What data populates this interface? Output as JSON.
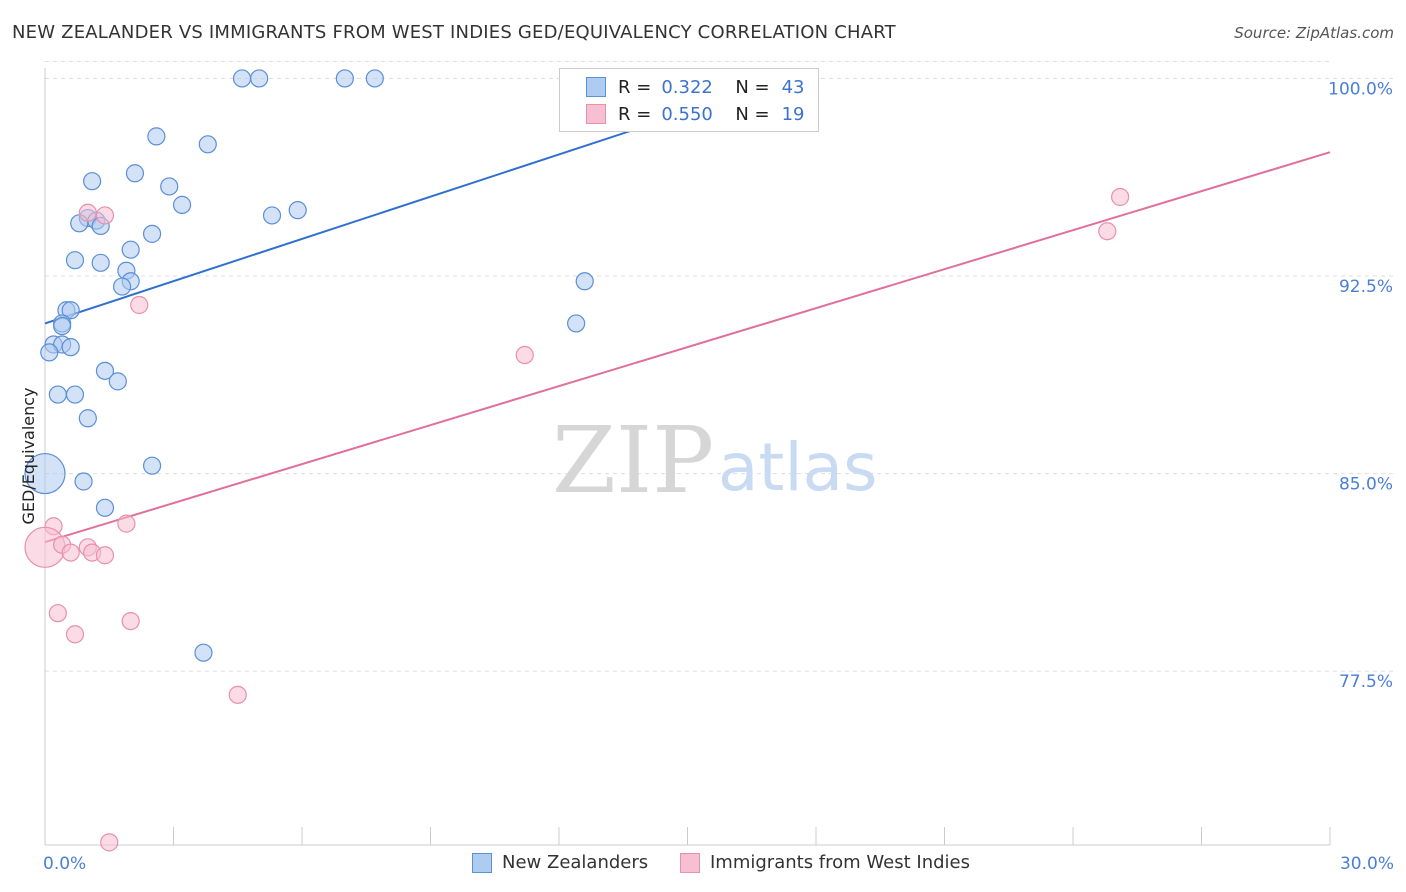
{
  "title": "NEW ZEALANDER VS IMMIGRANTS FROM WEST INDIES GED/EQUIVALENCY CORRELATION CHART",
  "source": "Source: ZipAtlas.com",
  "watermark": {
    "zip": "ZIP",
    "atlas": "atlas"
  },
  "legend": {
    "row1": {
      "r_label": "R =",
      "r_value": "0.322",
      "n_label": "N =",
      "n_value": "43"
    },
    "row2": {
      "r_label": "R =",
      "r_value": "0.550",
      "n_label": "N =",
      "n_value": "19"
    }
  },
  "bottom_legend": {
    "series1": "New Zealanders",
    "series2": "Immigrants from West Indies"
  },
  "colors": {
    "blue_fill": "#aecbf0",
    "blue_stroke": "#5b8fd6",
    "blue_line": "#2f6fcf",
    "pink_fill": "#f7c0d2",
    "pink_stroke": "#e890ac",
    "pink_line": "#e0709a",
    "tick_text": "#4a7fd4",
    "grid": "#dddddd"
  },
  "chart_data": {
    "type": "scatter",
    "title": "NEW ZEALANDER VS IMMIGRANTS FROM WEST INDIES GED/EQUIVALENCY CORRELATION CHART",
    "xlabel": "",
    "ylabel": "GED/Equivalency",
    "xlim": [
      0,
      30
    ],
    "ylim": [
      70.9,
      100.7
    ],
    "x_tick_labels": [
      "0.0%",
      "30.0%"
    ],
    "y_ticks": [
      77.5,
      85.0,
      92.5,
      100.0
    ],
    "y_tick_labels": [
      "77.5%",
      "85.0%",
      "92.5%",
      "100.0%"
    ],
    "grid": "dashed horizontal",
    "legend_placement": "top-center",
    "series": [
      {
        "name": "New Zealanders",
        "r": 0.322,
        "n": 43,
        "trend": {
          "x": [
            0.0,
            15.9
          ],
          "y": [
            90.7,
            99.2
          ]
        },
        "points": [
          {
            "x": 4.6,
            "y": 100.0
          },
          {
            "x": 5.0,
            "y": 100.0
          },
          {
            "x": 7.0,
            "y": 100.0
          },
          {
            "x": 7.7,
            "y": 100.0
          },
          {
            "x": 2.6,
            "y": 97.8
          },
          {
            "x": 3.8,
            "y": 97.5
          },
          {
            "x": 2.1,
            "y": 96.4
          },
          {
            "x": 1.1,
            "y": 96.1
          },
          {
            "x": 2.9,
            "y": 95.9
          },
          {
            "x": 3.2,
            "y": 95.2
          },
          {
            "x": 5.9,
            "y": 95.0
          },
          {
            "x": 5.3,
            "y": 94.8
          },
          {
            "x": 1.0,
            "y": 94.7
          },
          {
            "x": 0.8,
            "y": 94.5
          },
          {
            "x": 1.2,
            "y": 94.6
          },
          {
            "x": 1.3,
            "y": 94.4
          },
          {
            "x": 2.5,
            "y": 94.1
          },
          {
            "x": 2.0,
            "y": 93.5
          },
          {
            "x": 0.7,
            "y": 93.1
          },
          {
            "x": 1.3,
            "y": 93.0
          },
          {
            "x": 1.9,
            "y": 92.7
          },
          {
            "x": 2.0,
            "y": 92.3
          },
          {
            "x": 1.8,
            "y": 92.1
          },
          {
            "x": 12.6,
            "y": 92.3
          },
          {
            "x": 0.5,
            "y": 91.2
          },
          {
            "x": 0.6,
            "y": 91.2
          },
          {
            "x": 0.4,
            "y": 90.7
          },
          {
            "x": 0.4,
            "y": 90.6
          },
          {
            "x": 12.4,
            "y": 90.7
          },
          {
            "x": 0.2,
            "y": 89.9
          },
          {
            "x": 0.4,
            "y": 89.9
          },
          {
            "x": 0.6,
            "y": 89.8
          },
          {
            "x": 0.1,
            "y": 89.6
          },
          {
            "x": 1.4,
            "y": 88.9
          },
          {
            "x": 1.7,
            "y": 88.5
          },
          {
            "x": 0.3,
            "y": 88.0
          },
          {
            "x": 0.7,
            "y": 88.0
          },
          {
            "x": 1.0,
            "y": 87.1
          },
          {
            "x": 0.0,
            "y": 85.0
          },
          {
            "x": 2.5,
            "y": 85.3
          },
          {
            "x": 0.9,
            "y": 84.7
          },
          {
            "x": 1.4,
            "y": 83.7
          },
          {
            "x": 3.7,
            "y": 78.2
          }
        ]
      },
      {
        "name": "Immigrants from West Indies",
        "r": 0.55,
        "n": 19,
        "trend": {
          "x": [
            0.0,
            30.0
          ],
          "y": [
            82.4,
            97.2
          ]
        },
        "points": [
          {
            "x": 25.1,
            "y": 95.5
          },
          {
            "x": 24.8,
            "y": 94.2
          },
          {
            "x": 1.0,
            "y": 94.9
          },
          {
            "x": 1.4,
            "y": 94.8
          },
          {
            "x": 2.2,
            "y": 91.4
          },
          {
            "x": 11.2,
            "y": 89.5
          },
          {
            "x": 0.2,
            "y": 83.0
          },
          {
            "x": 1.9,
            "y": 83.1
          },
          {
            "x": 0.0,
            "y": 82.2
          },
          {
            "x": 0.4,
            "y": 82.3
          },
          {
            "x": 1.0,
            "y": 82.2
          },
          {
            "x": 0.6,
            "y": 82.0
          },
          {
            "x": 1.1,
            "y": 82.0
          },
          {
            "x": 1.4,
            "y": 81.9
          },
          {
            "x": 0.3,
            "y": 79.7
          },
          {
            "x": 2.0,
            "y": 79.4
          },
          {
            "x": 0.7,
            "y": 78.9
          },
          {
            "x": 4.5,
            "y": 76.6
          },
          {
            "x": 1.5,
            "y": 71.0
          }
        ]
      }
    ]
  }
}
